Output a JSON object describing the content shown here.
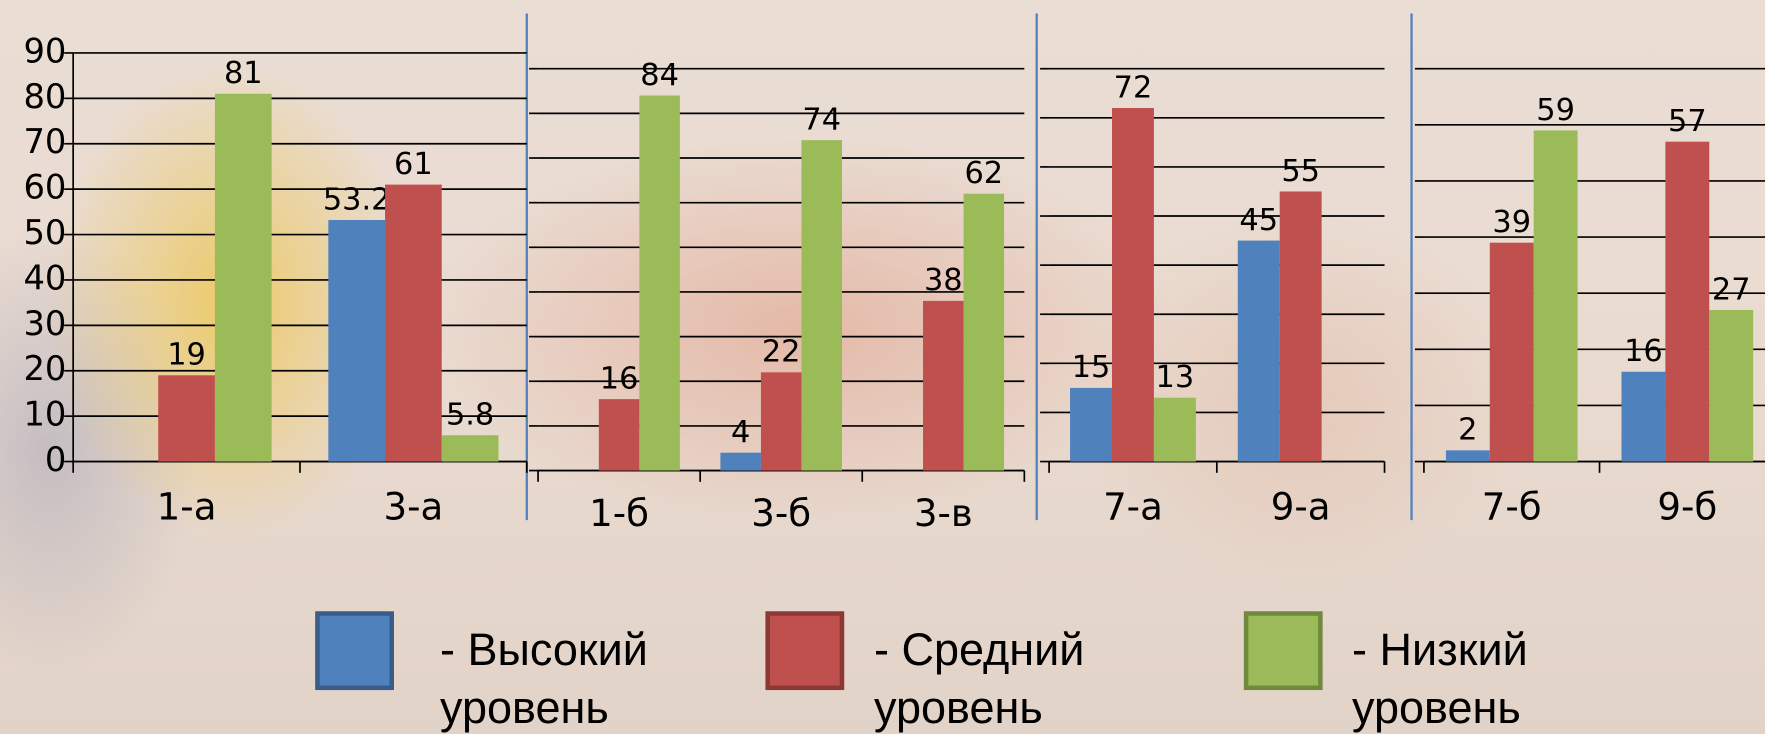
{
  "chart_data": [
    {
      "type": "bar",
      "categories": [
        "1-а",
        "3-а"
      ],
      "series": [
        {
          "name": "- Высокий уровень",
          "color": "#4f81bd",
          "values": [
            null,
            53.2
          ]
        },
        {
          "name": "- Средний уровень",
          "color": "#c0504d",
          "values": [
            19,
            61
          ]
        },
        {
          "name": "- Низкий уровень",
          "color": "#9bbb59",
          "values": [
            81,
            5.8
          ]
        }
      ],
      "ylim": [
        0,
        90
      ],
      "yticks": [
        0,
        10,
        20,
        30,
        40,
        50,
        60,
        70,
        80,
        90
      ],
      "grid": true,
      "tick_labels": true
    },
    {
      "type": "bar",
      "categories": [
        "1-б",
        "3-б",
        "3-в"
      ],
      "series": [
        {
          "color": "#4f81bd",
          "values": [
            null,
            4,
            null
          ]
        },
        {
          "color": "#c0504d",
          "values": [
            16,
            22,
            38
          ]
        },
        {
          "color": "#9bbb59",
          "values": [
            84,
            74,
            62
          ]
        }
      ],
      "ylim": [
        0,
        90
      ],
      "yticks": [
        0,
        10,
        20,
        30,
        40,
        50,
        60,
        70,
        80,
        90
      ],
      "grid": true,
      "tick_labels": false
    },
    {
      "type": "bar",
      "categories": [
        "7-а",
        "9-а"
      ],
      "series": [
        {
          "color": "#4f81bd",
          "values": [
            15,
            45
          ]
        },
        {
          "color": "#c0504d",
          "values": [
            72,
            55
          ]
        },
        {
          "color": "#9bbb59",
          "values": [
            13,
            null
          ]
        }
      ],
      "ylim": [
        0,
        80
      ],
      "yticks": [
        0,
        10,
        20,
        30,
        40,
        50,
        60,
        70,
        80
      ],
      "grid": true,
      "tick_labels": false
    },
    {
      "type": "bar",
      "categories": [
        "7-б",
        "9-б"
      ],
      "series": [
        {
          "color": "#4f81bd",
          "values": [
            2,
            16
          ]
        },
        {
          "color": "#c0504d",
          "values": [
            39,
            57
          ]
        },
        {
          "color": "#9bbb59",
          "values": [
            59,
            27
          ]
        }
      ],
      "ylim": [
        0,
        70
      ],
      "yticks": [
        0,
        10,
        20,
        30,
        40,
        50,
        60,
        70
      ],
      "grid": true,
      "tick_labels": false
    }
  ]
}
